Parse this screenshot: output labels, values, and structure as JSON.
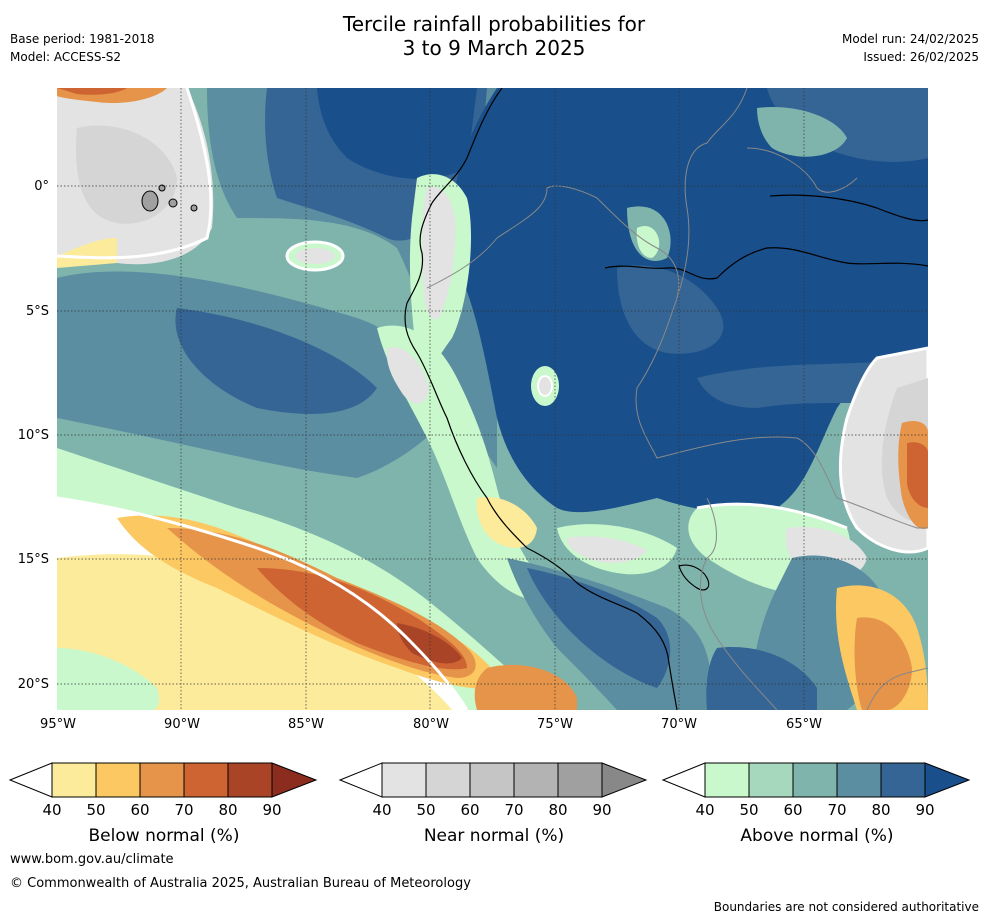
{
  "header": {
    "title_line1": "Tercile rainfall probabilities for",
    "title_line2": "3 to 9 March 2025",
    "base_period": "Base period: 1981-2018",
    "model": "Model: ACCESS-S2",
    "model_run": "Model run: 24/02/2025",
    "issued": "Issued: 26/02/2025"
  },
  "map": {
    "lat_labels": [
      "0°",
      "5°S",
      "10°S",
      "15°S",
      "20°S"
    ],
    "lon_labels": [
      "95°W",
      "90°W",
      "85°W",
      "80°W",
      "75°W",
      "70°W",
      "65°W"
    ],
    "colors": {
      "below": [
        "#fdeb9c",
        "#fcc862",
        "#e5944a",
        "#cd6432",
        "#aa4427",
        "#8b2c1f"
      ],
      "near": [
        "#e3e3e3",
        "#d5d5d5",
        "#c5c5c5",
        "#b3b3b3",
        "#a0a0a0",
        "#888888"
      ],
      "above": [
        "#c8f8cb",
        "#a6d8bd",
        "#7fb4ad",
        "#5b8ea0",
        "#356595",
        "#194f8b"
      ]
    }
  },
  "colorbars": {
    "below": {
      "ticks": [
        "40",
        "50",
        "60",
        "70",
        "80",
        "90"
      ],
      "title": "Below normal (%)"
    },
    "near": {
      "ticks": [
        "40",
        "50",
        "60",
        "70",
        "80",
        "90"
      ],
      "title": "Near normal (%)"
    },
    "above": {
      "ticks": [
        "40",
        "50",
        "60",
        "70",
        "80",
        "90"
      ],
      "title": "Above normal (%)"
    }
  },
  "footer": {
    "website": "www.bom.gov.au/climate",
    "copyright": "© Commonwealth of Australia 2025, Australian Bureau of Meteorology",
    "disclaimer": "Boundaries are not considered authoritative"
  }
}
